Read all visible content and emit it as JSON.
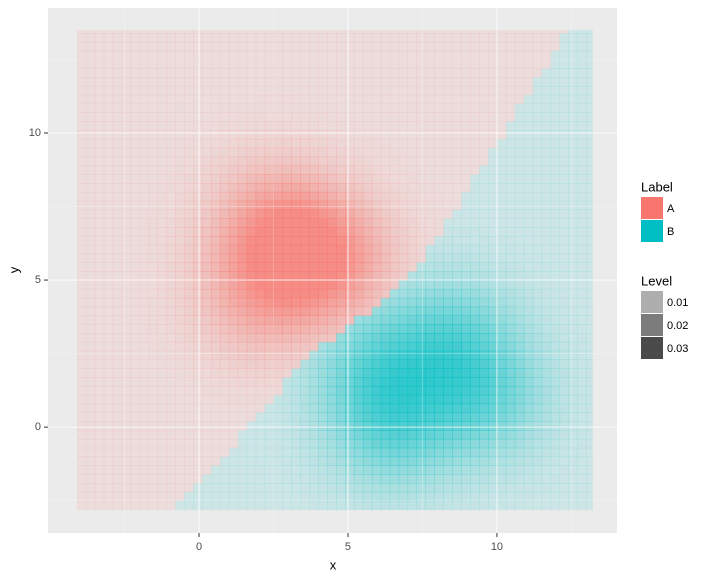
{
  "chart_data": {
    "type": "density",
    "x_label": "x",
    "y_label": "y",
    "xlim": [
      -5.07,
      14.03
    ],
    "ylim": [
      -3.6,
      14.25
    ],
    "xticks": [
      0,
      5,
      10
    ],
    "yticks": [
      0,
      5,
      10
    ],
    "x_minor_ticks": [
      -2.5,
      2.5,
      7.5,
      12.5
    ],
    "y_minor_ticks": [
      -2.5,
      2.5,
      7.5,
      12.5
    ],
    "density_xlim": [
      -4.1,
      13.2
    ],
    "density_ylim": [
      -2.8,
      13.5
    ],
    "grid": true,
    "legend_title": "Label",
    "series": [
      {
        "name": "A",
        "color": "#F8766D",
        "points": [
          [
            2,
            4.5
          ],
          [
            3.5,
            6
          ],
          [
            2.5,
            7
          ],
          [
            4.5,
            5.5
          ]
        ]
      },
      {
        "name": "B",
        "color": "#00BFC4",
        "points": [
          [
            6,
            2
          ],
          [
            6.5,
            0
          ],
          [
            8.5,
            3
          ],
          [
            9.5,
            1
          ]
        ]
      }
    ],
    "level_title": "Level",
    "levels": [
      0.01,
      0.02,
      0.03
    ]
  }
}
